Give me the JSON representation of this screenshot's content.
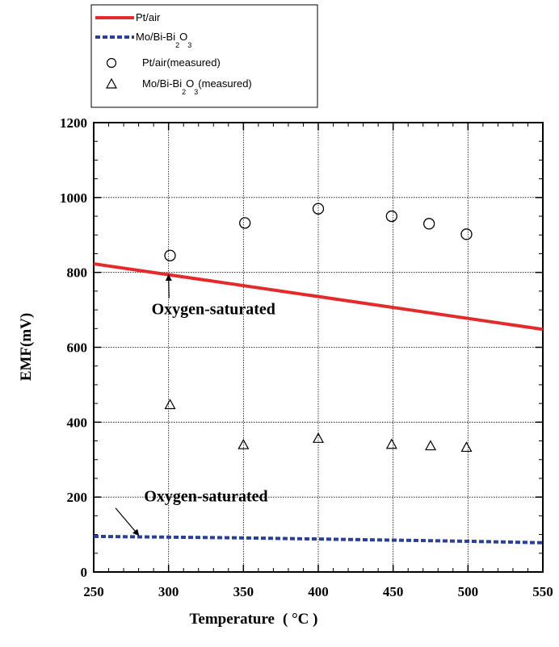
{
  "chart_data": {
    "type": "line",
    "xlabel": "Temperature",
    "xlabel_unit": "( °C )",
    "ylabel": "EMF(mV)",
    "xlim": [
      250,
      550
    ],
    "ylim": [
      0,
      1200
    ],
    "x_ticks": [
      250,
      300,
      350,
      400,
      450,
      500,
      550
    ],
    "y_ticks": [
      0,
      200,
      400,
      600,
      800,
      1000,
      1200
    ],
    "grid": true,
    "legend_position": "top-left-outside",
    "legend": [
      {
        "key": "pt_line",
        "text": "Pt/air",
        "sub": "",
        "after": "",
        "style": "solid-line",
        "color": "#e32b2b"
      },
      {
        "key": "mo_line",
        "text": "Mo/Bi-Bi",
        "sub": "2",
        "mid": "O",
        "sub2": "3",
        "after": "",
        "style": "dashed-line",
        "color": "#2a3f9a"
      },
      {
        "key": "pt_meas",
        "text": "Pt/air(measured)",
        "style": "circle-marker",
        "color": "#000000"
      },
      {
        "key": "mo_meas",
        "text": "Mo/Bi-Bi",
        "sub": "2",
        "mid": "O",
        "sub2": "3",
        "after": "(measured)",
        "style": "triangle-marker",
        "color": "#000000"
      }
    ],
    "series": [
      {
        "name": "Pt/air",
        "kind": "line",
        "color": "#e32b2b",
        "x": [
          250,
          550
        ],
        "y": [
          823,
          648
        ]
      },
      {
        "name": "Mo/Bi-Bi2O3",
        "kind": "dashed-line",
        "color": "#2a3f9a",
        "x": [
          250,
          300,
          350,
          400,
          450,
          500,
          550
        ],
        "y": [
          95,
          93,
          91,
          88,
          85,
          82,
          78
        ]
      },
      {
        "name": "Pt/air(measured)",
        "kind": "circle",
        "x": [
          301,
          351,
          400,
          449,
          474,
          499
        ],
        "y": [
          845,
          932,
          970,
          950,
          930,
          902
        ]
      },
      {
        "name": "Mo/Bi-Bi2O3(measured)",
        "kind": "triangle",
        "x": [
          301,
          350,
          400,
          449,
          475,
          499
        ],
        "y": [
          447,
          340,
          357,
          341,
          337,
          333
        ]
      }
    ],
    "annotations": [
      {
        "text": "Oxygen-saturated",
        "x": 330,
        "y": 688,
        "arrow_to_x": 300,
        "arrow_to_y": 793
      },
      {
        "text": "Oxygen-saturated",
        "x": 325,
        "y": 188,
        "arrow_to_x": 280,
        "arrow_to_y": 98
      }
    ]
  }
}
